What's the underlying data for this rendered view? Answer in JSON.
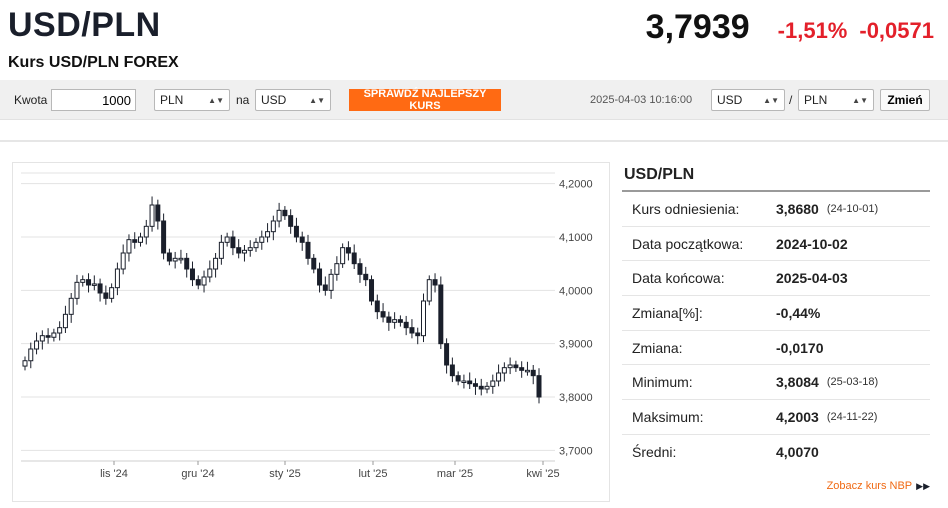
{
  "header": {
    "pair": "USD/PLN",
    "subtitle": "Kurs USD/PLN FOREX",
    "price": "3,7939",
    "change_pct": "-1,51%",
    "change_abs": "-0,0571"
  },
  "toolbar": {
    "amount_label": "Kwota",
    "amount_value": "1000",
    "from_currency": "PLN",
    "na_label": "na",
    "to_currency": "USD",
    "check_button": "SPRAWDŹ NAJLEPSZY KURS",
    "timestamp": "2025-04-03 10:16:00",
    "pair_base": "USD",
    "slash": "/",
    "pair_quote": "PLN",
    "change_button": "Zmień"
  },
  "stats": {
    "title": "USD/PLN",
    "rows": [
      {
        "label": "Kurs odniesienia:",
        "value": "3,8680",
        "date": "(24-10-01)"
      },
      {
        "label": "Data początkowa:",
        "value": "2024-10-02",
        "date": ""
      },
      {
        "label": "Data końcowa:",
        "value": "2025-04-03",
        "date": ""
      },
      {
        "label": "Zmiana[%]:",
        "value": "-0,44%",
        "date": ""
      },
      {
        "label": "Zmiana:",
        "value": "-0,0170",
        "date": ""
      },
      {
        "label": "Minimum:",
        "value": "3,8084",
        "date": "(25-03-18)"
      },
      {
        "label": "Maksimum:",
        "value": "4,2003",
        "date": "(24-11-22)"
      },
      {
        "label": "Średni:",
        "value": "4,0070",
        "date": ""
      }
    ],
    "nbp_link": "Zobacz kurs NBP"
  },
  "chart_data": {
    "type": "candlestick",
    "x_ticks": [
      "lis '24",
      "gru '24",
      "sty '25",
      "lut '25",
      "mar '25",
      "kwi '25"
    ],
    "y_ticks": [
      "4,2000",
      "4,1000",
      "4,0000",
      "3,9000",
      "3,8000",
      "3,7000"
    ],
    "ylim": [
      3.7,
      4.2
    ],
    "grid": true,
    "close_series": [
      3.868,
      3.89,
      3.905,
      3.915,
      3.912,
      3.92,
      3.93,
      3.955,
      3.985,
      4.015,
      4.02,
      4.01,
      4.012,
      3.995,
      3.985,
      4.005,
      4.04,
      4.07,
      4.095,
      4.09,
      4.1,
      4.12,
      4.16,
      4.13,
      4.07,
      4.055,
      4.06,
      4.06,
      4.04,
      4.02,
      4.01,
      4.025,
      4.04,
      4.06,
      4.09,
      4.1,
      4.08,
      4.07,
      4.075,
      4.08,
      4.09,
      4.1,
      4.11,
      4.13,
      4.15,
      4.14,
      4.12,
      4.1,
      4.09,
      4.06,
      4.04,
      4.01,
      4.0,
      4.03,
      4.05,
      4.08,
      4.07,
      4.05,
      4.03,
      4.02,
      3.98,
      3.96,
      3.95,
      3.94,
      3.945,
      3.94,
      3.93,
      3.92,
      3.915,
      3.98,
      4.02,
      4.01,
      3.9,
      3.86,
      3.84,
      3.83,
      3.83,
      3.825,
      3.82,
      3.815,
      3.82,
      3.83,
      3.845,
      3.855,
      3.86,
      3.855,
      3.85,
      3.85,
      3.84,
      3.8
    ]
  }
}
